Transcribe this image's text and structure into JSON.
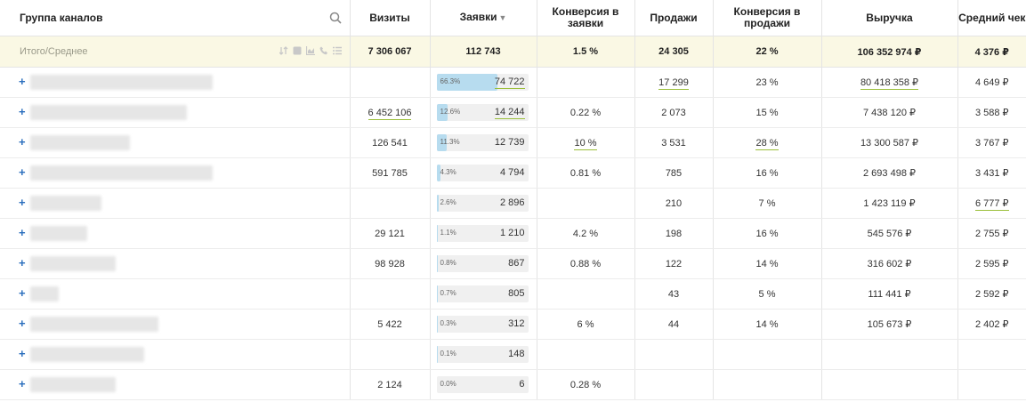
{
  "header": {
    "group": "Группа каналов",
    "visits": "Визиты",
    "requests": "Заявки",
    "sort_arrow": "▼",
    "conv_req": "Конверсия в заявки",
    "sales": "Продажи",
    "conv_sales": "Конверсия в продажи",
    "revenue": "Выручка",
    "avg_check": "Средний чек"
  },
  "total": {
    "label": "Итого/Среднее",
    "visits": "7 306 067",
    "requests": "112 743",
    "conv_req": "1.5 %",
    "sales": "24 305",
    "conv_sales": "22 %",
    "revenue": "106 352 974 ₽",
    "avg_check": "4 376 ₽"
  },
  "rows": [
    {
      "plus": "+",
      "visits": "",
      "share": 66.3,
      "pct": "66.3%",
      "requests": "74 722",
      "conv_req": "",
      "sales": "17 299",
      "conv_sales": "23 %",
      "revenue": "80 418 358 ₽",
      "avg_check": "4 649 ₽"
    },
    {
      "plus": "+",
      "visits": "6 452 106",
      "share": 12.6,
      "pct": "12.6%",
      "requests": "14 244",
      "conv_req": "0.22 %",
      "sales": "2 073",
      "conv_sales": "15 %",
      "revenue": "7 438 120 ₽",
      "avg_check": "3 588 ₽"
    },
    {
      "plus": "+",
      "visits": "126 541",
      "share": 11.3,
      "pct": "11.3%",
      "requests": "12 739",
      "conv_req": "10 %",
      "sales": "3 531",
      "conv_sales": "28 %",
      "revenue": "13 300 587 ₽",
      "avg_check": "3 767 ₽"
    },
    {
      "plus": "+",
      "visits": "591 785",
      "share": 4.3,
      "pct": "4.3%",
      "requests": "4 794",
      "conv_req": "0.81 %",
      "sales": "785",
      "conv_sales": "16 %",
      "revenue": "2 693 498 ₽",
      "avg_check": "3 431 ₽"
    },
    {
      "plus": "+",
      "visits": "",
      "share": 2.6,
      "pct": "2.6%",
      "requests": "2 896",
      "conv_req": "",
      "sales": "210",
      "conv_sales": "7 %",
      "revenue": "1 423 119 ₽",
      "avg_check": "6 777 ₽"
    },
    {
      "plus": "+",
      "visits": "29 121",
      "share": 1.1,
      "pct": "1.1%",
      "requests": "1 210",
      "conv_req": "4.2 %",
      "sales": "198",
      "conv_sales": "16 %",
      "revenue": "545 576 ₽",
      "avg_check": "2 755 ₽"
    },
    {
      "plus": "+",
      "visits": "98 928",
      "share": 0.8,
      "pct": "0.8%",
      "requests": "867",
      "conv_req": "0.88 %",
      "sales": "122",
      "conv_sales": "14 %",
      "revenue": "316 602 ₽",
      "avg_check": "2 595 ₽"
    },
    {
      "plus": "+",
      "visits": "",
      "share": 0.7,
      "pct": "0.7%",
      "requests": "805",
      "conv_req": "",
      "sales": "43",
      "conv_sales": "5 %",
      "revenue": "111 441 ₽",
      "avg_check": "2 592 ₽"
    },
    {
      "plus": "+",
      "visits": "5 422",
      "share": 0.3,
      "pct": "0.3%",
      "requests": "312",
      "conv_req": "6 %",
      "sales": "44",
      "conv_sales": "14 %",
      "revenue": "105 673 ₽",
      "avg_check": "2 402 ₽"
    },
    {
      "plus": "+",
      "visits": "",
      "share": 0.1,
      "pct": "0.1%",
      "requests": "148",
      "conv_req": "",
      "sales": "",
      "conv_sales": "",
      "revenue": "",
      "avg_check": ""
    },
    {
      "plus": "+",
      "visits": "2 124",
      "share": 0.0,
      "pct": "0.0%",
      "requests": "6",
      "conv_req": "0.28 %",
      "sales": "",
      "conv_sales": "",
      "revenue": "",
      "avg_check": ""
    }
  ],
  "colors": {
    "bar": "#b7dcef",
    "total_bg": "#faf8e4",
    "underline": "#9bbf3a",
    "plus": "#2a6ebd"
  },
  "icons": [
    "search-icon",
    "sort-icon",
    "square-icon",
    "chart-icon",
    "phone-icon",
    "list-icon"
  ]
}
